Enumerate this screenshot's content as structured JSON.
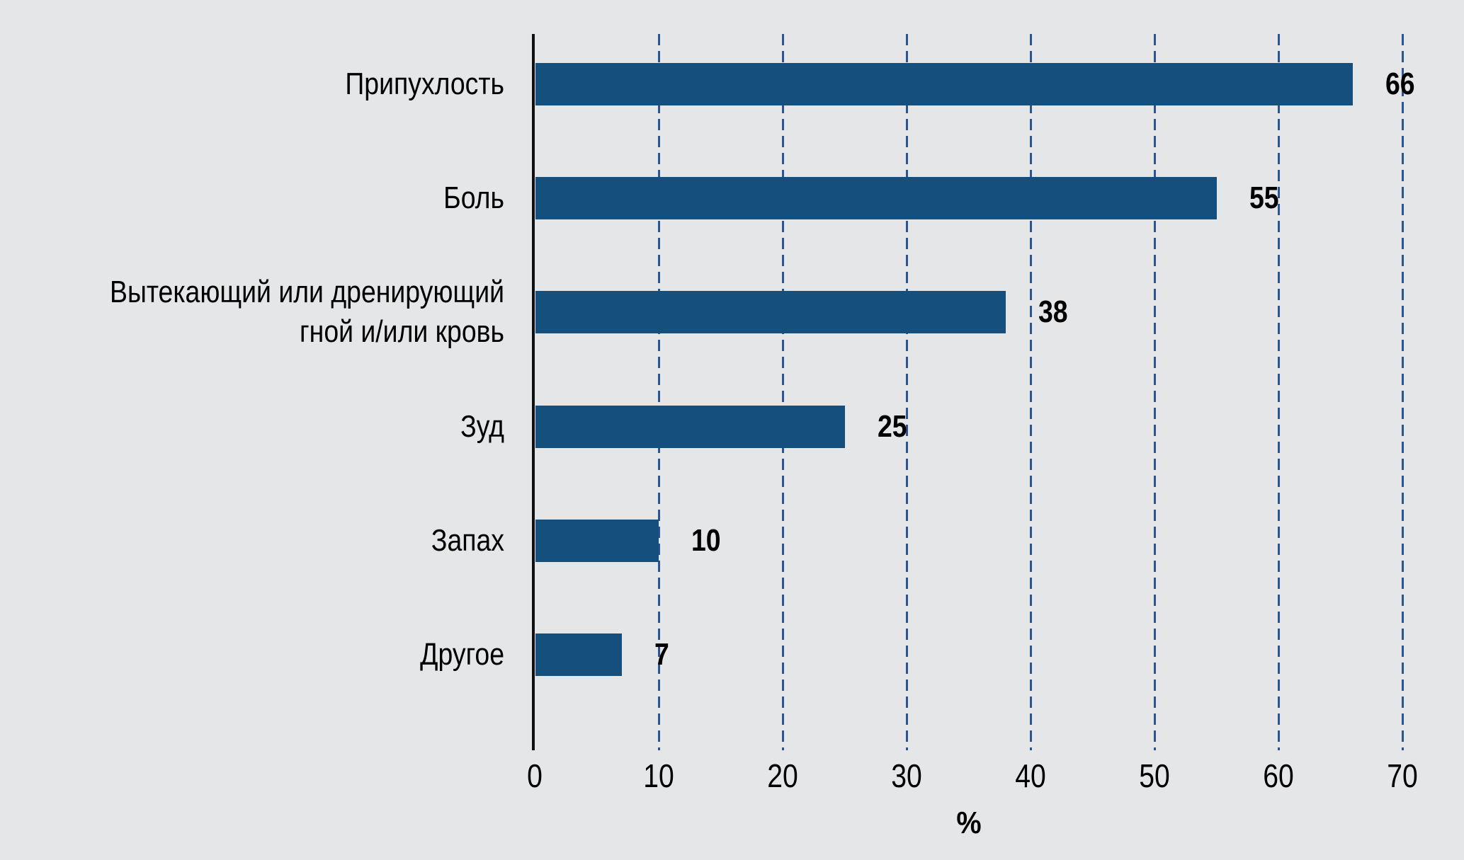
{
  "chart_data": {
    "type": "bar",
    "orientation": "horizontal",
    "title": "",
    "xlabel": "%",
    "ylabel": "",
    "xlim": [
      0,
      70
    ],
    "xticks": [
      0,
      10,
      20,
      30,
      40,
      50,
      60,
      70
    ],
    "grid": "vertical dashed gridlines, legend none",
    "categories": [
      "Припухлость",
      "Боль",
      "Вытекающий или дренирующий\nгной и/или кровь",
      "Зуд",
      "Запах",
      "Другое"
    ],
    "values": [
      66,
      55,
      38,
      25,
      10,
      7
    ],
    "colors": {
      "background": "#e5e6e8",
      "bar": "#154f7e",
      "gridline": "#2c5492",
      "axis": "#111111",
      "text": "#000000"
    }
  }
}
